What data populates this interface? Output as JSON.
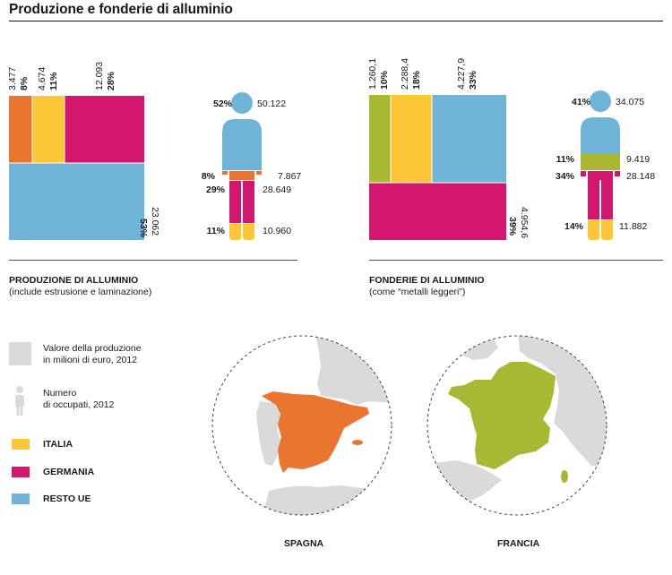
{
  "title": "Produzione e fonderie di alluminio",
  "colors": {
    "italia": "#fcc636",
    "germania": "#d3176e",
    "resto_ue": "#6fb4d6",
    "spagna": "#ea7530",
    "francia": "#a8b832",
    "neutral": "#dadada"
  },
  "chart_data": [
    {
      "type": "treemap",
      "title": "PRODUZIONE DI ALLUMINIO",
      "subtitle": "(include estrusione e laminazione)",
      "unit": "Valore della produzione in milioni di euro, 2012",
      "cells": [
        {
          "series": "SPAGNA",
          "value_label": "3.477",
          "pct_label": "8%",
          "color_key": "spagna"
        },
        {
          "series": "ITALIA",
          "value_label": "4.674",
          "pct_label": "11%",
          "color_key": "italia"
        },
        {
          "series": "GERMANIA",
          "value_label": "12.093",
          "pct_label": "28%",
          "color_key": "germania"
        },
        {
          "series": "RESTO UE",
          "value_label": "23.062",
          "pct_label": "53%",
          "color_key": "resto_ue"
        }
      ],
      "employment": {
        "unit": "Numero di occupati, 2012",
        "parts": [
          {
            "series": "RESTO UE",
            "pct_label": "52%",
            "value_label": "50.122",
            "color_key": "resto_ue"
          },
          {
            "series": "SPAGNA",
            "pct_label": "8%",
            "value_label": "7.867",
            "color_key": "spagna"
          },
          {
            "series": "GERMANIA",
            "pct_label": "29%",
            "value_label": "28.649",
            "color_key": "germania"
          },
          {
            "series": "ITALIA",
            "pct_label": "11%",
            "value_label": "10.960",
            "color_key": "italia"
          }
        ]
      }
    },
    {
      "type": "treemap",
      "title": "FONDERIE DI ALLUMINIO",
      "subtitle": "(come “metalli leggeri”)",
      "unit": "Valore della produzione in milioni di euro, 2012",
      "cells": [
        {
          "series": "FRANCIA",
          "value_label": "1.260,1",
          "pct_label": "10%",
          "color_key": "francia"
        },
        {
          "series": "ITALIA",
          "value_label": "2.288,4",
          "pct_label": "18%",
          "color_key": "italia"
        },
        {
          "series": "RESTO UE",
          "value_label": "4.227,9",
          "pct_label": "33%",
          "color_key": "resto_ue"
        },
        {
          "series": "GERMANIA",
          "value_label": "4.954,6",
          "pct_label": "39%",
          "color_key": "germania"
        }
      ],
      "employment": {
        "unit": "Numero di occupati, 2012",
        "parts": [
          {
            "series": "RESTO UE",
            "pct_label": "41%",
            "value_label": "34.075",
            "color_key": "resto_ue"
          },
          {
            "series": "FRANCIA",
            "pct_label": "11%",
            "value_label": "9.419",
            "color_key": "francia"
          },
          {
            "series": "GERMANIA",
            "pct_label": "34%",
            "value_label": "28.148",
            "color_key": "germania"
          },
          {
            "series": "ITALIA",
            "pct_label": "14%",
            "value_label": "11.882",
            "color_key": "italia"
          }
        ]
      }
    }
  ],
  "legend": {
    "value_desc": "Valore della produzione\nin milioni di euro, 2012",
    "people_desc": "Numero\ndi occupati, 2012",
    "items": [
      {
        "label": "ITALIA",
        "color_key": "italia"
      },
      {
        "label": "GERMANIA",
        "color_key": "germania"
      },
      {
        "label": "RESTO UE",
        "color_key": "resto_ue"
      }
    ]
  },
  "maps": [
    {
      "label": "SPAGNA",
      "color_key": "spagna"
    },
    {
      "label": "FRANCIA",
      "color_key": "francia"
    }
  ]
}
